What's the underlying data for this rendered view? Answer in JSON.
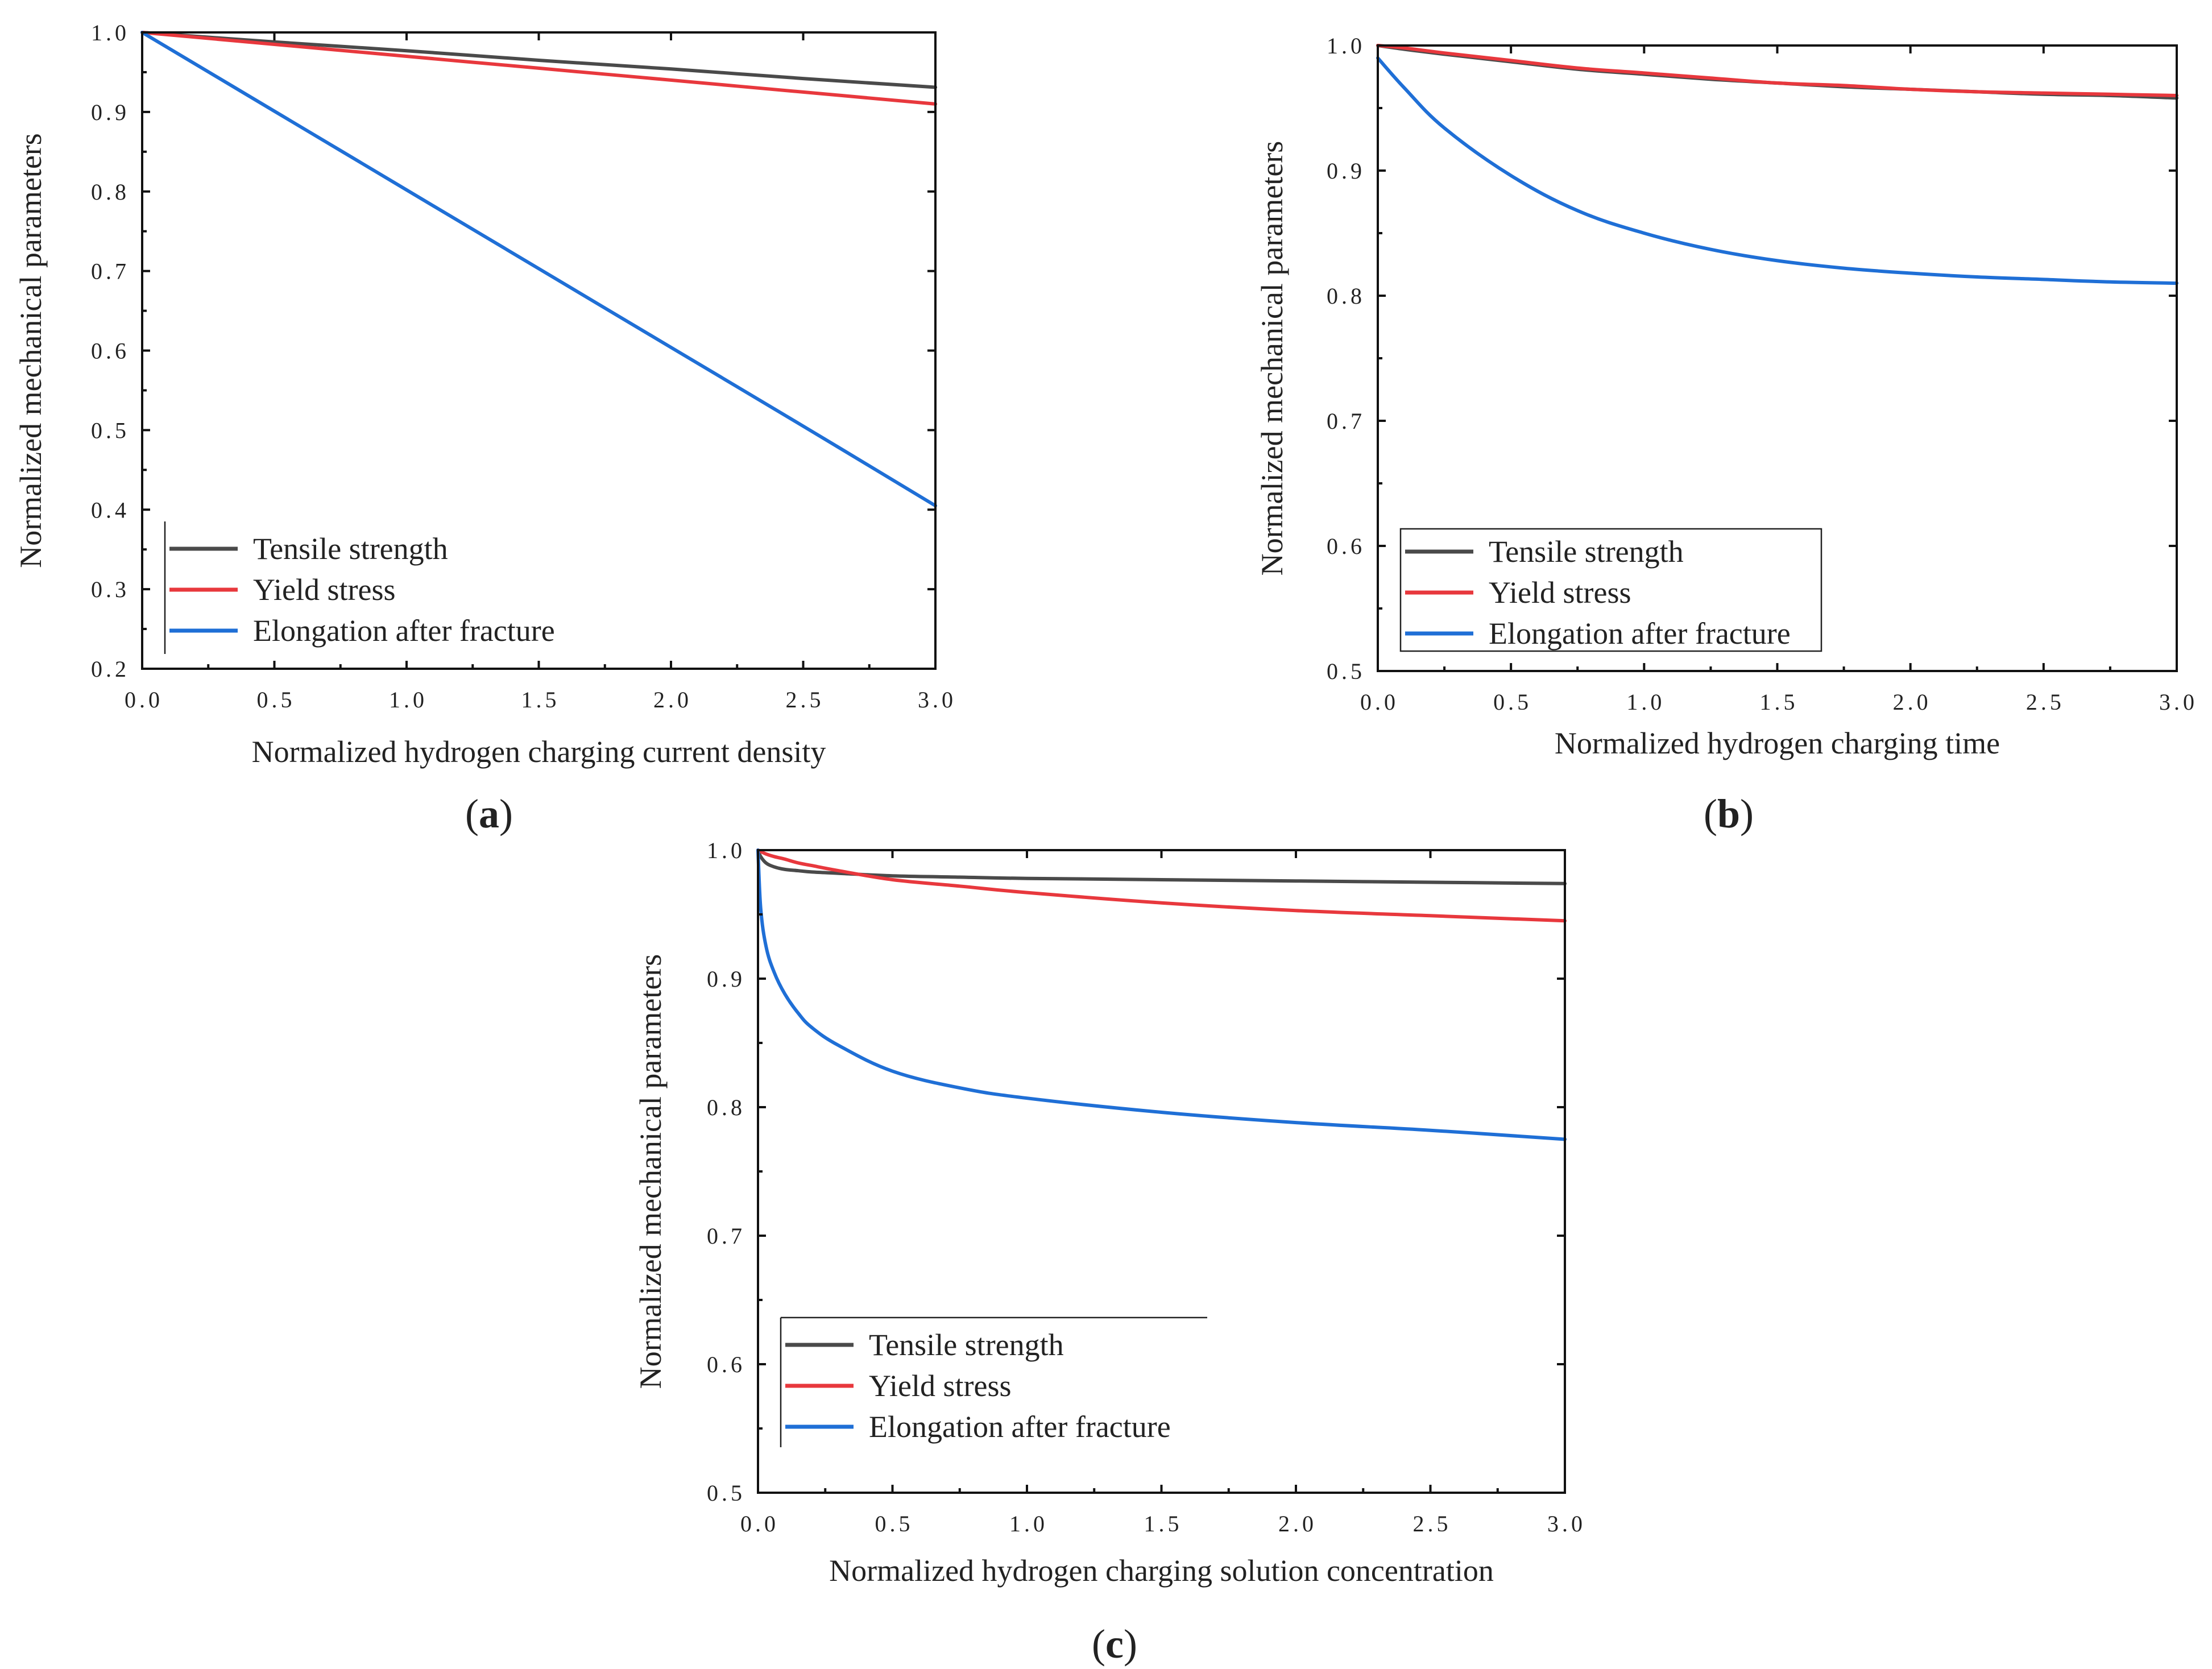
{
  "colors": {
    "tensile": "#4a4a4a",
    "yield": "#e8383d",
    "elongation": "#1f6fd6",
    "axis": "#111111"
  },
  "chart_data": [
    {
      "id": "a",
      "panel_label": "a",
      "type": "line",
      "title": "",
      "xlabel": "Normalized hydrogen charging current density",
      "ylabel": "Normalized mechanical parameters",
      "xlim": [
        0,
        3.0
      ],
      "ylim": [
        0.2,
        1.0
      ],
      "xticks": [
        "0.0",
        "0.5",
        "1.0",
        "1.5",
        "2.0",
        "2.5",
        "3.0"
      ],
      "yticks": [
        "0.2",
        "0.3",
        "0.4",
        "0.5",
        "0.6",
        "0.7",
        "0.8",
        "0.9",
        "1.0"
      ],
      "x": [
        0,
        0.5,
        1.0,
        1.5,
        2.0,
        2.5,
        3.0
      ],
      "legend_position": "bottom-left",
      "legend_entries": [
        "Tensile strength",
        "Yield stress",
        "Elongation after fracture"
      ],
      "series": [
        {
          "name": "Tensile strength",
          "color_key": "tensile",
          "values": [
            1.0,
            0.988,
            0.977,
            0.965,
            0.954,
            0.942,
            0.931
          ]
        },
        {
          "name": "Yield stress",
          "color_key": "yield",
          "values": [
            1.0,
            0.985,
            0.97,
            0.955,
            0.94,
            0.925,
            0.91
          ]
        },
        {
          "name": "Elongation after fracture",
          "color_key": "elongation",
          "values": [
            1.0,
            0.901,
            0.802,
            0.703,
            0.604,
            0.505,
            0.405
          ]
        }
      ]
    },
    {
      "id": "b",
      "panel_label": "b",
      "type": "line",
      "title": "",
      "xlabel": "Normalized hydrogen charging time",
      "ylabel": "Normalized mechanical parameters",
      "xlim": [
        0,
        3.0
      ],
      "ylim": [
        0.5,
        1.0
      ],
      "xticks": [
        "0.0",
        "0.5",
        "1.0",
        "1.5",
        "2.0",
        "2.5",
        "3.0"
      ],
      "yticks": [
        "0.5",
        "0.6",
        "0.7",
        "0.8",
        "0.9",
        "1.0"
      ],
      "x": [
        0,
        0.1,
        0.25,
        0.5,
        0.75,
        1.0,
        1.25,
        1.5,
        1.75,
        2.0,
        2.25,
        2.5,
        2.75,
        3.0
      ],
      "legend_position": "bottom-left",
      "legend_entries": [
        "Tensile strength",
        "Yield stress",
        "Elongation after fracture"
      ],
      "series": [
        {
          "name": "Tensile strength",
          "color_key": "tensile",
          "values": [
            1.0,
            0.997,
            0.993,
            0.987,
            0.981,
            0.977,
            0.973,
            0.97,
            0.967,
            0.965,
            0.963,
            0.961,
            0.96,
            0.958
          ]
        },
        {
          "name": "Yield stress",
          "color_key": "yield",
          "values": [
            1.0,
            0.998,
            0.994,
            0.988,
            0.982,
            0.978,
            0.974,
            0.97,
            0.968,
            0.965,
            0.963,
            0.962,
            0.961,
            0.96
          ]
        },
        {
          "name": "Elongation after fracture",
          "color_key": "elongation",
          "values": [
            0.99,
            0.966,
            0.934,
            0.896,
            0.868,
            0.85,
            0.837,
            0.828,
            0.822,
            0.818,
            0.815,
            0.813,
            0.811,
            0.81
          ]
        }
      ]
    },
    {
      "id": "c",
      "panel_label": "c",
      "type": "line",
      "title": "",
      "xlabel": "Normalized hydrogen charging solution concentration",
      "ylabel": "Normalized mechanical parameters",
      "xlim": [
        0,
        3.0
      ],
      "ylim": [
        0.5,
        1.0
      ],
      "xticks": [
        "0.0",
        "0.5",
        "1.0",
        "1.5",
        "2.0",
        "2.5",
        "3.0"
      ],
      "yticks": [
        "0.5",
        "0.6",
        "0.7",
        "0.8",
        "0.9",
        "1.0"
      ],
      "x": [
        0,
        0.01,
        0.03,
        0.06,
        0.1,
        0.15,
        0.2,
        0.3,
        0.5,
        0.75,
        1.0,
        1.5,
        2.0,
        2.5,
        3.0
      ],
      "legend_position": "bottom-left",
      "legend_entries": [
        "Tensile strength",
        "Yield stress",
        "Elongation after fracture"
      ],
      "series": [
        {
          "name": "Tensile strength",
          "color_key": "tensile",
          "values": [
            1.0,
            0.995,
            0.99,
            0.987,
            0.985,
            0.984,
            0.983,
            0.982,
            0.98,
            0.979,
            0.978,
            0.977,
            0.976,
            0.975,
            0.974
          ]
        },
        {
          "name": "Yield stress",
          "color_key": "yield",
          "values": [
            1.0,
            0.999,
            0.997,
            0.995,
            0.993,
            0.99,
            0.988,
            0.984,
            0.977,
            0.972,
            0.967,
            0.959,
            0.953,
            0.949,
            0.945
          ]
        },
        {
          "name": "Elongation after fracture",
          "color_key": "elongation",
          "values": [
            1.0,
            0.955,
            0.925,
            0.905,
            0.888,
            0.873,
            0.862,
            0.848,
            0.828,
            0.815,
            0.807,
            0.796,
            0.788,
            0.782,
            0.775
          ]
        }
      ]
    }
  ]
}
